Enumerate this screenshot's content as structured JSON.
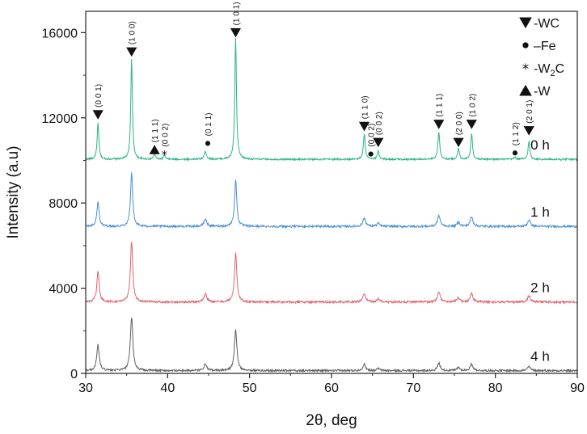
{
  "chart_data": {
    "type": "line",
    "xlabel": "2θ, deg",
    "ylabel": "Intensity (a.u)",
    "xlim": [
      30,
      90
    ],
    "ylim": [
      0,
      17000
    ],
    "x_ticks": [
      30,
      40,
      50,
      60,
      70,
      80,
      90
    ],
    "y_ticks": [
      0,
      4000,
      8000,
      12000,
      16000
    ],
    "legend_position": "top-right",
    "legend": [
      {
        "marker": "triangle-down",
        "label": "-WC"
      },
      {
        "marker": "circle",
        "label": "–Fe"
      },
      {
        "marker": "asterisk",
        "label": "-W",
        "sub": "2",
        "after": "C"
      },
      {
        "marker": "triangle-up",
        "label": "-W"
      }
    ],
    "series": [
      {
        "name": "0 h",
        "color": "#2bb38c",
        "baseline": 10050,
        "noise": 40,
        "peaks": [
          {
            "x": 31.5,
            "h": 1700,
            "w": 0.12
          },
          {
            "x": 35.6,
            "h": 4700,
            "w": 0.12
          },
          {
            "x": 38.4,
            "h": 300,
            "w": 0.12
          },
          {
            "x": 39.6,
            "h": 200,
            "w": 0.12
          },
          {
            "x": 44.6,
            "h": 400,
            "w": 0.15
          },
          {
            "x": 48.3,
            "h": 5700,
            "w": 0.12
          },
          {
            "x": 64.0,
            "h": 1200,
            "w": 0.13
          },
          {
            "x": 65.7,
            "h": 400,
            "w": 0.13
          },
          {
            "x": 73.1,
            "h": 1300,
            "w": 0.13
          },
          {
            "x": 75.5,
            "h": 500,
            "w": 0.13
          },
          {
            "x": 77.1,
            "h": 1200,
            "w": 0.13
          },
          {
            "x": 82.4,
            "h": 100,
            "w": 0.13
          },
          {
            "x": 84.1,
            "h": 850,
            "w": 0.13
          }
        ]
      },
      {
        "name": "1 h",
        "color": "#4a8fd0",
        "baseline": 6900,
        "noise": 50,
        "peaks": [
          {
            "x": 31.5,
            "h": 1150,
            "w": 0.16
          },
          {
            "x": 35.6,
            "h": 2500,
            "w": 0.16
          },
          {
            "x": 44.6,
            "h": 350,
            "w": 0.2
          },
          {
            "x": 48.3,
            "h": 2200,
            "w": 0.16
          },
          {
            "x": 64.0,
            "h": 400,
            "w": 0.2
          },
          {
            "x": 65.7,
            "h": 150,
            "w": 0.2
          },
          {
            "x": 73.1,
            "h": 500,
            "w": 0.2
          },
          {
            "x": 75.5,
            "h": 200,
            "w": 0.2
          },
          {
            "x": 77.1,
            "h": 450,
            "w": 0.2
          },
          {
            "x": 84.1,
            "h": 300,
            "w": 0.2
          }
        ]
      },
      {
        "name": "2 h",
        "color": "#e0656a",
        "baseline": 3350,
        "noise": 50,
        "peaks": [
          {
            "x": 31.5,
            "h": 1400,
            "w": 0.17
          },
          {
            "x": 35.6,
            "h": 2850,
            "w": 0.17
          },
          {
            "x": 44.6,
            "h": 400,
            "w": 0.2
          },
          {
            "x": 48.3,
            "h": 2300,
            "w": 0.17
          },
          {
            "x": 64.0,
            "h": 400,
            "w": 0.2
          },
          {
            "x": 65.7,
            "h": 150,
            "w": 0.2
          },
          {
            "x": 73.1,
            "h": 450,
            "w": 0.2
          },
          {
            "x": 75.5,
            "h": 200,
            "w": 0.2
          },
          {
            "x": 77.1,
            "h": 400,
            "w": 0.2
          },
          {
            "x": 84.1,
            "h": 300,
            "w": 0.2
          }
        ]
      },
      {
        "name": "4 h",
        "color": "#606060",
        "baseline": 130,
        "noise": 45,
        "peaks": [
          {
            "x": 31.5,
            "h": 1200,
            "w": 0.18
          },
          {
            "x": 35.6,
            "h": 2500,
            "w": 0.18
          },
          {
            "x": 44.6,
            "h": 300,
            "w": 0.2
          },
          {
            "x": 48.3,
            "h": 1950,
            "w": 0.18
          },
          {
            "x": 64.0,
            "h": 300,
            "w": 0.2
          },
          {
            "x": 65.7,
            "h": 100,
            "w": 0.2
          },
          {
            "x": 73.1,
            "h": 350,
            "w": 0.2
          },
          {
            "x": 75.5,
            "h": 150,
            "w": 0.2
          },
          {
            "x": 77.1,
            "h": 300,
            "w": 0.2
          },
          {
            "x": 84.1,
            "h": 200,
            "w": 0.2
          }
        ]
      }
    ],
    "peak_annotations": [
      {
        "x": 31.5,
        "y": 12150,
        "marker": "triangle-down",
        "label": "(0 0 1)"
      },
      {
        "x": 35.6,
        "y": 15100,
        "marker": "triangle-down",
        "label": "(1 0 0)"
      },
      {
        "x": 38.4,
        "y": 10500,
        "marker": "triangle-up",
        "label": "(1 1 1)"
      },
      {
        "x": 39.6,
        "y": 10300,
        "marker": "asterisk",
        "label": "(0 0 2)"
      },
      {
        "x": 44.9,
        "y": 10800,
        "marker": "circle",
        "label": "(0 1 1)"
      },
      {
        "x": 48.3,
        "y": 16000,
        "marker": "triangle-down",
        "label": "(1 0 1)"
      },
      {
        "x": 64.0,
        "y": 11600,
        "marker": "triangle-down",
        "label": "(1 1 0)"
      },
      {
        "x": 64.8,
        "y": 10300,
        "marker": "circle",
        "label": "(0 0 2)"
      },
      {
        "x": 65.7,
        "y": 10850,
        "marker": "triangle-down",
        "label": "(0 0 2)"
      },
      {
        "x": 73.1,
        "y": 11700,
        "marker": "triangle-down",
        "label": "(1 1 1)"
      },
      {
        "x": 75.5,
        "y": 10850,
        "marker": "triangle-down",
        "label": "(2 0 0)"
      },
      {
        "x": 77.1,
        "y": 11700,
        "marker": "triangle-down",
        "label": "(1 0 2)"
      },
      {
        "x": 82.4,
        "y": 10350,
        "marker": "circle",
        "label": "(1 1 2)"
      },
      {
        "x": 84.1,
        "y": 11400,
        "marker": "triangle-down",
        "label": "(2 0 1)"
      }
    ]
  }
}
